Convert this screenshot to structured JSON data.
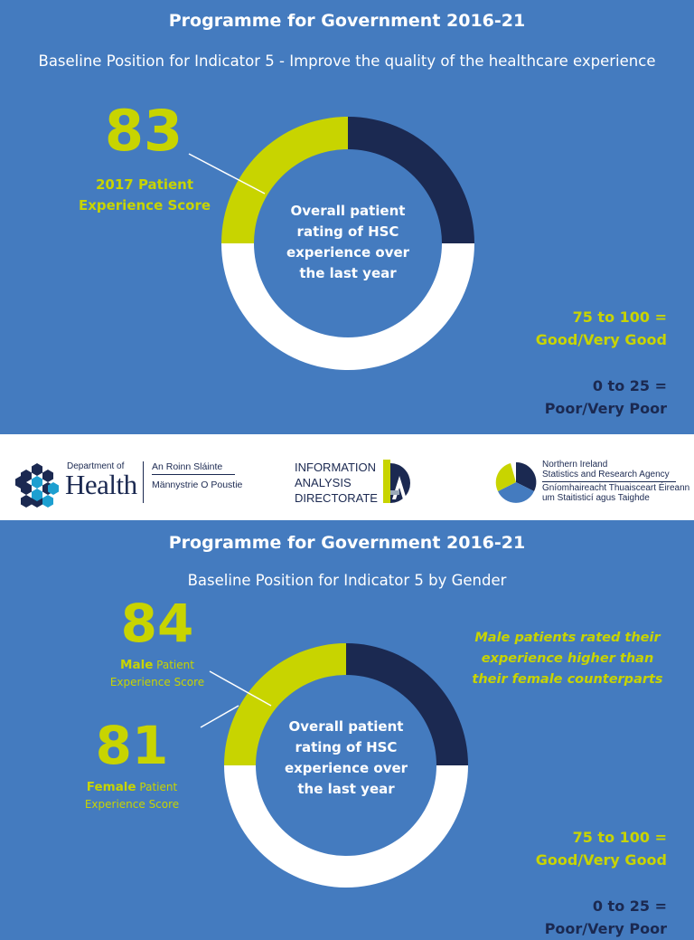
{
  "panel1": {
    "title": "Programme for Government 2016-21",
    "subtitle": "Baseline Position for Indicator 5 - Improve the quality of the healthcare experience",
    "score": "83",
    "score_label_line1": "2017 Patient",
    "score_label_line2": "Experience Score",
    "center_line1": "Overall patient",
    "center_line2": "rating of HSC",
    "center_line3": "experience over",
    "center_line4": "the last year",
    "legend_good_line1": "75 to 100 =",
    "legend_good_line2": "Good/Very Good",
    "legend_poor_line1": "0 to 25 =",
    "legend_poor_line2": "Poor/Very Poor"
  },
  "logos": {
    "doh_small": "Department of",
    "doh_big": "Health",
    "doh_irish": "An Roinn Sláinte",
    "doh_ulster": "Männystrie O Poustie",
    "iad_line1": "INFORMATION",
    "iad_line2": "ANALYSIS",
    "iad_line3": "DIRECTORATE",
    "nisra_line1": "Northern Ireland",
    "nisra_line2": "Statistics and Research Agency",
    "nisra_line3": "Gníomhaireacht Thuaisceart Éireann",
    "nisra_line4": "um Staitisticí agus Taighde"
  },
  "panel2": {
    "title": "Programme for Government 2016-21",
    "subtitle": "Baseline Position for Indicator 5 by Gender",
    "male_score": "84",
    "male_word": "Male",
    "male_rest1": " Patient",
    "male_line2": "Experience Score",
    "female_score": "81",
    "female_word": "Female",
    "female_rest1": " Patient",
    "female_line2": "Experience Score",
    "note_line1": "Male patients rated their",
    "note_line2": "experience higher than",
    "note_line3": "their female counterparts",
    "center_line1": "Overall patient",
    "center_line2": "rating of HSC",
    "center_line3": "experience over",
    "center_line4": "the last year",
    "legend_good_line1": "75 to 100 =",
    "legend_good_line2": "Good/Very Good",
    "legend_poor_line1": "0 to 25 =",
    "legend_poor_line2": "Poor/Very Poor"
  },
  "chart_data": [
    {
      "type": "pie",
      "title": "Programme for Government 2016-21",
      "subtitle": "Baseline Position for Indicator 5 - Improve the quality of the healthcare experience",
      "center_label": "Overall patient rating of HSC experience over the last year",
      "series": [
        {
          "name": "2017 Patient Experience Score",
          "value": 83
        }
      ],
      "bands": [
        {
          "name": "75 to 100 = Good/Very Good",
          "from": 75,
          "to": 100
        },
        {
          "name": "0 to 25 = Poor/Very Poor",
          "from": 0,
          "to": 25
        }
      ],
      "scale": [
        0,
        100
      ]
    },
    {
      "type": "pie",
      "title": "Programme for Government 2016-21",
      "subtitle": "Baseline Position for Indicator 5 by Gender",
      "center_label": "Overall patient rating of HSC experience over the last year",
      "series": [
        {
          "name": "Male Patient Experience Score",
          "value": 84
        },
        {
          "name": "Female Patient Experience Score",
          "value": 81
        }
      ],
      "bands": [
        {
          "name": "75 to 100 = Good/Very Good",
          "from": 75,
          "to": 100
        },
        {
          "name": "0 to 25 = Poor/Very Poor",
          "from": 0,
          "to": 25
        }
      ],
      "scale": [
        0,
        100
      ]
    }
  ],
  "colors": {
    "background": "#447bbf",
    "accent": "#c8d400",
    "navy": "#1b2951",
    "ring": "#ffffff"
  }
}
